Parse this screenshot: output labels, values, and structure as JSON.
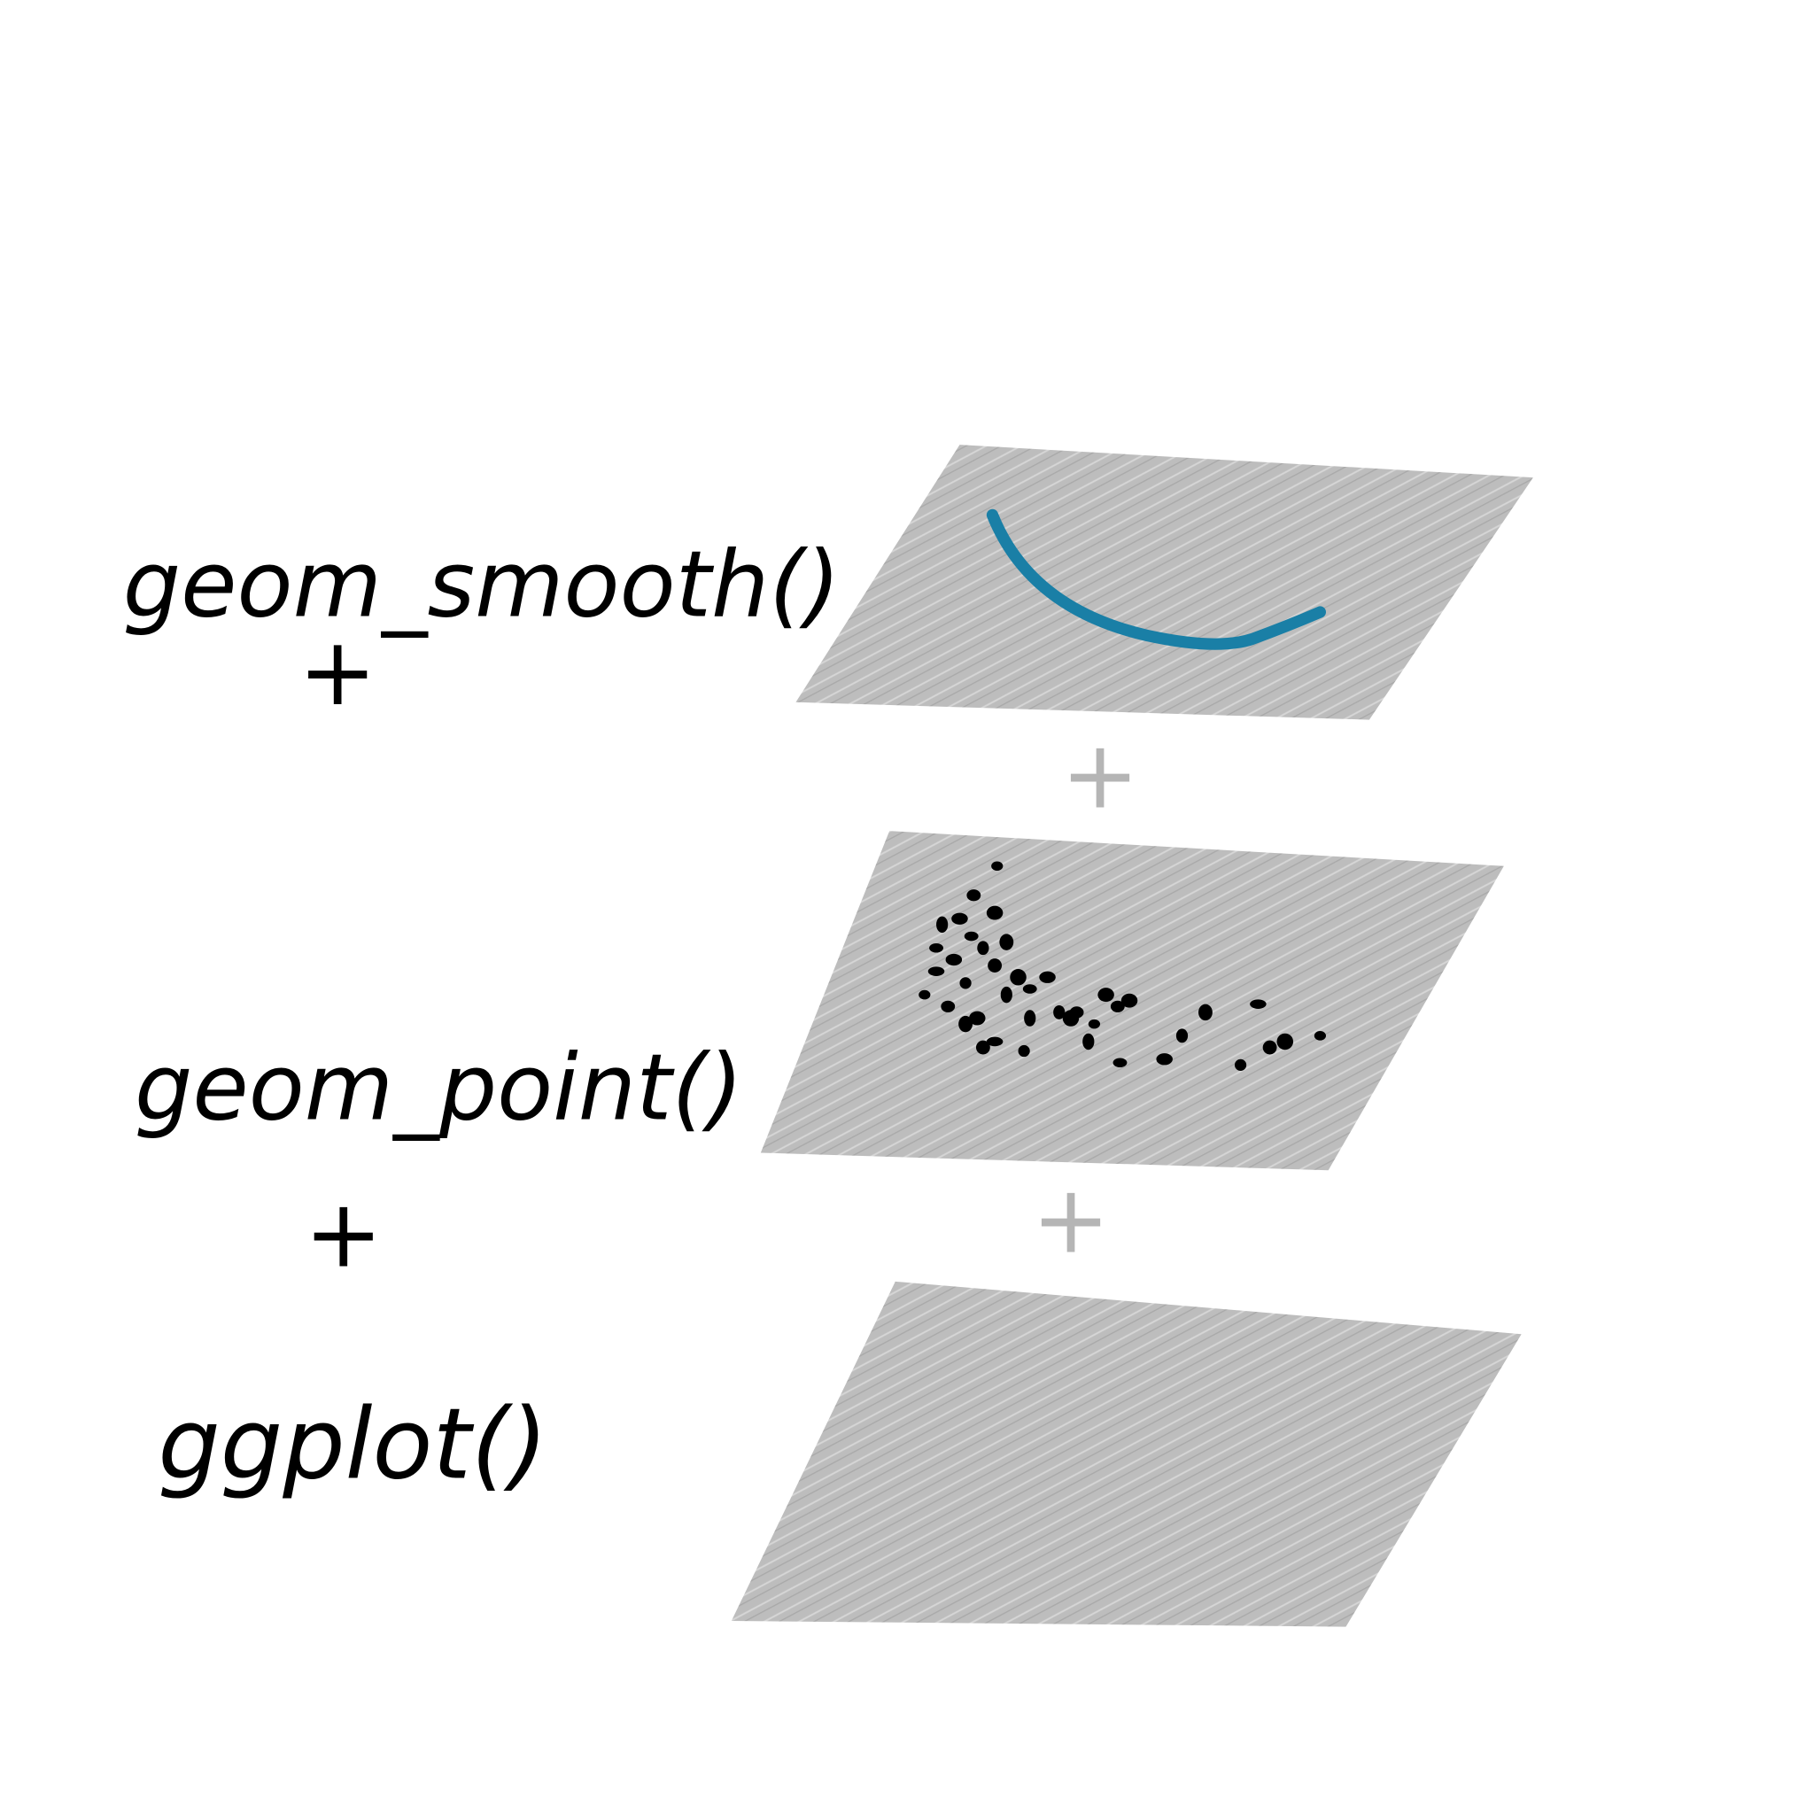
{
  "labels": [
    "geom_smooth()",
    "geom_point()",
    "ggplot()"
  ],
  "operators": [
    "+",
    "+"
  ],
  "layer_operators": [
    "+",
    "+"
  ]
}
